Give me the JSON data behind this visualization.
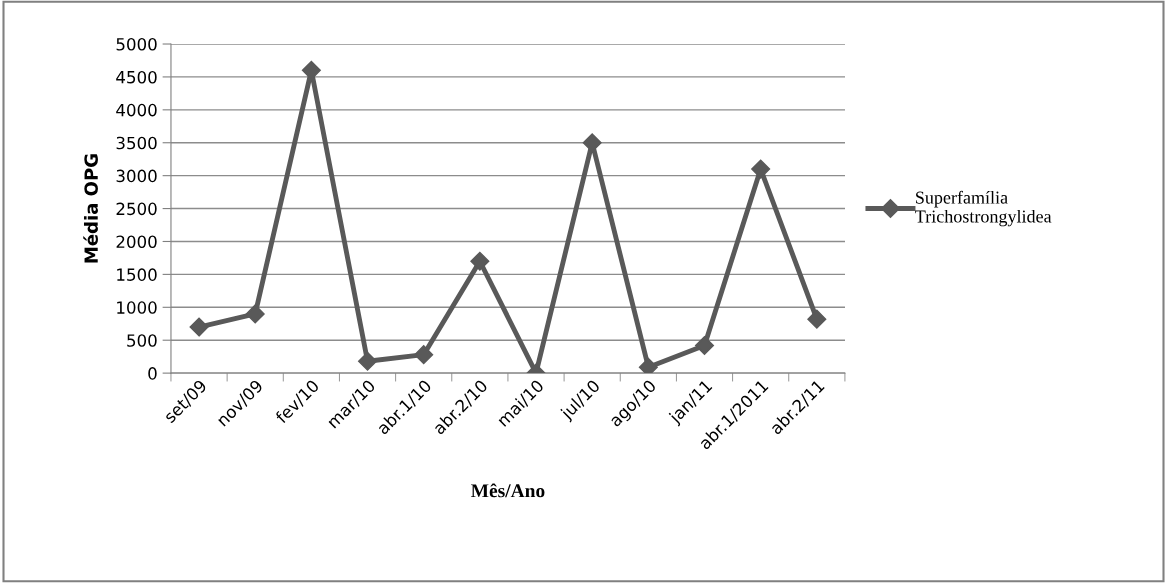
{
  "chart_data": {
    "type": "line",
    "xlabel": "Mês/Ano",
    "ylabel": "Média OPG",
    "categories": [
      "set/09",
      "nov/09",
      "fev/10",
      "mar/10",
      "abr.1/10",
      "abr.2/10",
      "mai/10",
      "jul/10",
      "ago/10",
      "jan/11",
      "abr.1/2011",
      "abr.2/11"
    ],
    "series": [
      {
        "name": "Superfamília\nTrichostrongylidea",
        "color": "#595959",
        "values": [
          700,
          900,
          4600,
          180,
          280,
          1700,
          0,
          3500,
          90,
          420,
          3100,
          820
        ]
      }
    ],
    "ylim": [
      0,
      5000
    ],
    "yticks": [
      0,
      500,
      1000,
      1500,
      2000,
      2500,
      3000,
      3500,
      4000,
      4500,
      5000
    ],
    "grid": "y",
    "legend": "right",
    "marker": "diamond",
    "line_style": "solid"
  }
}
